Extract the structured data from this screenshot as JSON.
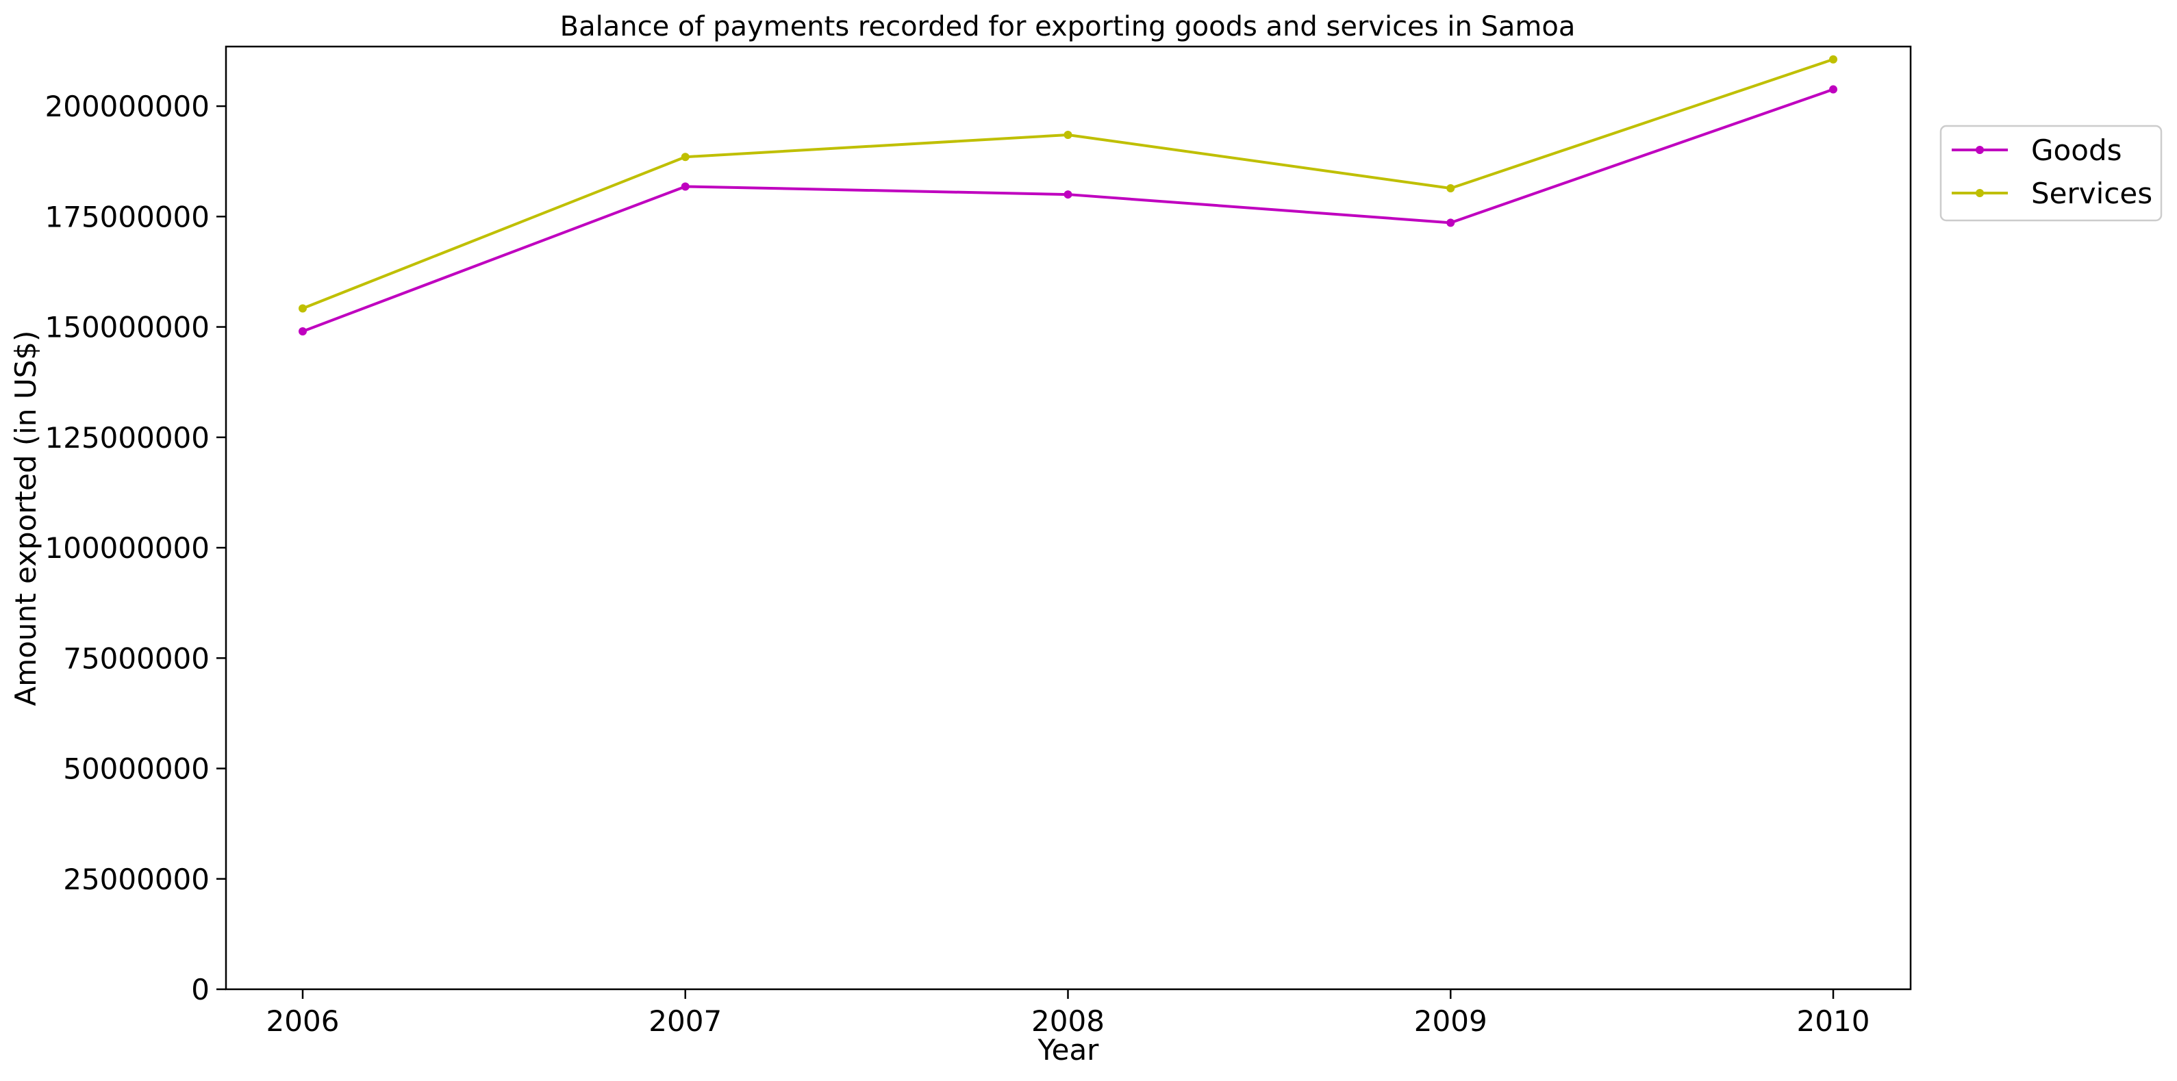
{
  "chart_data": {
    "type": "line",
    "title": "Balance of payments recorded for exporting goods and services in Samoa",
    "xlabel": "Year",
    "ylabel": "Amount exported (in US$)",
    "x": [
      "2006",
      "2007",
      "2008",
      "2009",
      "2010"
    ],
    "ylim": [
      0,
      213500000
    ],
    "yticks": [
      "0",
      "25000000",
      "50000000",
      "75000000",
      "100000000",
      "125000000",
      "150000000",
      "175000000",
      "200000000"
    ],
    "grid": false,
    "legend_position": "outside-right-top",
    "series": [
      {
        "name": "Goods",
        "color": "#bf00bf",
        "values": [
          149000000,
          181800000,
          180000000,
          173600000,
          203800000
        ]
      },
      {
        "name": "Services",
        "color": "#bfbf00",
        "values": [
          154200000,
          188500000,
          193500000,
          181400000,
          210600000
        ]
      }
    ]
  }
}
